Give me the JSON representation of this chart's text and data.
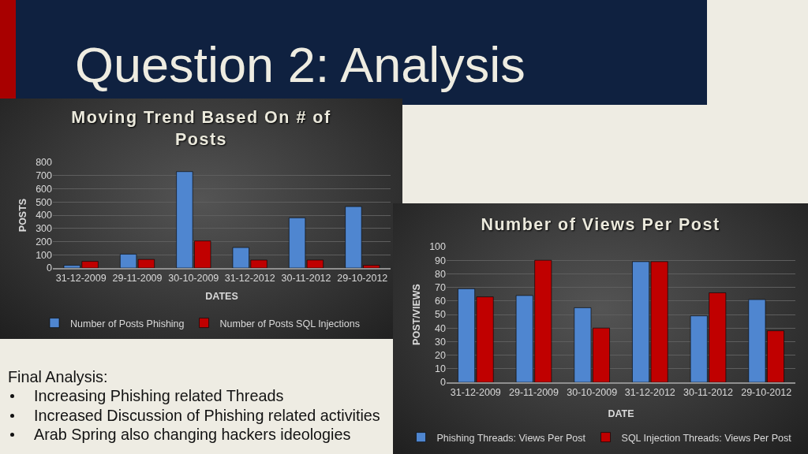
{
  "chart_data": [
    {
      "type": "other",
      "title": "Question 2: Analysis"
    },
    {
      "type": "bar",
      "title": "Moving Trend Based On # of Posts",
      "xlabel": "DATES",
      "ylabel": "POSTS",
      "categories": [
        "31-12-2009",
        "29-11-2009",
        "30-10-2009",
        "31-12-2012",
        "30-11-2012",
        "29-10-2012"
      ],
      "series": [
        {
          "name": "Number of Posts Phishing",
          "color": "#4f86d0",
          "values": [
            20,
            105,
            730,
            155,
            380,
            465
          ]
        },
        {
          "name": "Number of Posts SQL Injections",
          "color": "#c00000",
          "values": [
            50,
            65,
            205,
            60,
            60,
            20
          ]
        }
      ],
      "ylim": [
        0,
        800
      ],
      "yticks": [
        0,
        100,
        200,
        300,
        400,
        500,
        600,
        700,
        800
      ],
      "grid": "y",
      "legend": "bottom"
    },
    {
      "type": "bar",
      "title": "Number of Views Per Post",
      "xlabel": "DATE",
      "ylabel": "POST/VIEWS",
      "categories": [
        "31-12-2009",
        "29-11-2009",
        "30-10-2009",
        "31-12-2012",
        "30-11-2012",
        "29-10-2012"
      ],
      "series": [
        {
          "name": "Phishing Threads: Views Per Post",
          "color": "#4f86d0",
          "values": [
            69,
            64,
            55,
            89,
            49,
            61
          ]
        },
        {
          "name": "SQL Injection Threads: Views Per Post",
          "color": "#c00000",
          "values": [
            63,
            90,
            40,
            89,
            66,
            38
          ]
        }
      ],
      "ylim": [
        0,
        100
      ],
      "yticks": [
        0,
        10,
        20,
        30,
        40,
        50,
        60,
        70,
        80,
        90,
        100
      ],
      "grid": "y",
      "legend": "bottom"
    },
    {
      "type": "other",
      "title": "Final Analysis:",
      "annotations": [
        "Increasing Phishing related Threads",
        "Increased Discussion of Phishing related activities",
        "Arab Spring also changing hackers ideologies"
      ]
    }
  ]
}
